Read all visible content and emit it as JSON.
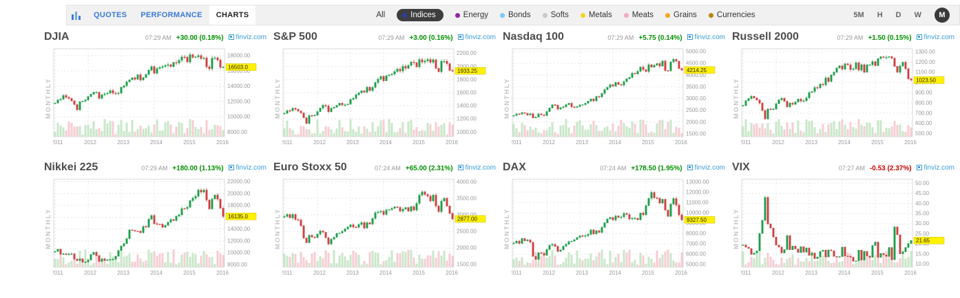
{
  "topbar": {
    "tabs": [
      {
        "label": "QUOTES",
        "active": false
      },
      {
        "label": "PERFORMANCE",
        "active": false
      },
      {
        "label": "CHARTS",
        "active": true
      }
    ],
    "filters": [
      {
        "label": "All",
        "dot": null,
        "selected": false
      },
      {
        "label": "Indices",
        "dot": "#2c3e9e",
        "selected": true
      },
      {
        "label": "Energy",
        "dot": "#8e24aa",
        "selected": false
      },
      {
        "label": "Bonds",
        "dot": "#7ec8f7",
        "selected": false
      },
      {
        "label": "Softs",
        "dot": "#c9c9c9",
        "selected": false
      },
      {
        "label": "Metals",
        "dot": "#f5d327",
        "selected": false
      },
      {
        "label": "Meats",
        "dot": "#f2aac4",
        "selected": false
      },
      {
        "label": "Grains",
        "dot": "#f5a623",
        "selected": false
      },
      {
        "label": "Currencies",
        "dot": "#b8860b",
        "selected": false
      }
    ],
    "timeframes": [
      {
        "label": "5M",
        "active": false
      },
      {
        "label": "H",
        "active": false
      },
      {
        "label": "D",
        "active": false
      },
      {
        "label": "W",
        "active": false
      },
      {
        "label": "M",
        "active": true
      }
    ]
  },
  "branding": {
    "source_label": "finviz.com"
  },
  "colors": {
    "up": "#1d9e4a",
    "down": "#cf4040",
    "vol_up": "#c9e7c9",
    "vol_down": "#f5cdd3",
    "price_tag": "#fff100",
    "positive": "#009000",
    "negative": "#cc0000",
    "accent_blue": "#3a9bd5"
  },
  "chart_data": [
    {
      "type": "candlestick",
      "title": "DJIA",
      "time": "07:29 AM",
      "change": "+30.00 (0.18%)",
      "change_color": "#009000",
      "last_price_label": "16503.0",
      "period_label": "MONTHLY",
      "interval": "monthly",
      "x_start": "2011-01",
      "x_labels": [
        "2011",
        "2012",
        "2013",
        "2014",
        "2015",
        "2016"
      ],
      "y_ticks": [
        18000,
        16000,
        14000,
        12000,
        10000,
        8000
      ],
      "ylim": [
        7400,
        18900
      ],
      "closes": [
        11800,
        12200,
        12300,
        12800,
        12550,
        12400,
        12100,
        11600,
        10900,
        11950,
        12050,
        12200,
        12650,
        12950,
        13200,
        13200,
        12400,
        12880,
        13000,
        13100,
        13430,
        13100,
        13020,
        13100,
        13860,
        14050,
        14570,
        14840,
        15110,
        14900,
        15500,
        14810,
        15130,
        15540,
        16090,
        16570,
        15700,
        16320,
        16450,
        16580,
        16710,
        16820,
        16560,
        17100,
        17040,
        17390,
        17830,
        17820,
        17160,
        18130,
        17770,
        17840,
        18010,
        17620,
        17690,
        16530,
        16280,
        17660,
        17720,
        17420,
        16460,
        16503
      ]
    },
    {
      "type": "candlestick",
      "title": "S&P 500",
      "time": "07:29 AM",
      "change": "+3.00 (0.16%)",
      "change_color": "#009000",
      "last_price_label": "1933.25",
      "period_label": "MONTHLY",
      "interval": "monthly",
      "x_start": "2011-01",
      "x_labels": [
        "2011",
        "2012",
        "2013",
        "2014",
        "2015",
        "2016"
      ],
      "y_ticks": [
        2200,
        2000,
        1800,
        1600,
        1400,
        1200,
        1000
      ],
      "ylim": [
        930,
        2270
      ],
      "closes": [
        1286,
        1327,
        1325,
        1363,
        1345,
        1320,
        1292,
        1218,
        1131,
        1253,
        1246,
        1257,
        1312,
        1365,
        1408,
        1397,
        1310,
        1362,
        1379,
        1406,
        1440,
        1412,
        1416,
        1426,
        1498,
        1514,
        1569,
        1597,
        1630,
        1606,
        1685,
        1632,
        1681,
        1756,
        1805,
        1848,
        1782,
        1859,
        1872,
        1883,
        1923,
        1960,
        1930,
        2003,
        1972,
        2018,
        2067,
        2058,
        1994,
        2104,
        2067,
        2085,
        2107,
        2063,
        2103,
        1972,
        1920,
        2079,
        2080,
        2043,
        1940,
        1933.25
      ]
    },
    {
      "type": "candlestick",
      "title": "Nasdaq 100",
      "time": "07:29 AM",
      "change": "+5.75 (0.14%)",
      "change_color": "#009000",
      "last_price_label": "4214.25",
      "period_label": "MONTHLY",
      "interval": "monthly",
      "x_start": "2011-01",
      "x_labels": [
        "2011",
        "2012",
        "2013",
        "2014",
        "2015",
        "2016"
      ],
      "y_ticks": [
        5000,
        4500,
        4000,
        3500,
        3000,
        2500,
        2000,
        1500
      ],
      "ylim": [
        1380,
        5120
      ],
      "closes": [
        2277,
        2350,
        2338,
        2404,
        2370,
        2300,
        2355,
        2180,
        2215,
        2350,
        2310,
        2278,
        2445,
        2600,
        2738,
        2720,
        2550,
        2615,
        2650,
        2740,
        2800,
        2650,
        2620,
        2660,
        2730,
        2740,
        2800,
        2890,
        2980,
        2900,
        3090,
        3070,
        3220,
        3380,
        3480,
        3590,
        3530,
        3690,
        3600,
        3570,
        3720,
        3840,
        3900,
        4080,
        4050,
        4160,
        4340,
        4230,
        4150,
        4440,
        4340,
        4420,
        4490,
        4380,
        4600,
        4190,
        4180,
        4560,
        4670,
        4590,
        4280,
        4214.25
      ]
    },
    {
      "type": "candlestick",
      "title": "Russell 2000",
      "time": "07:29 AM",
      "change": "+1.50 (0.15%)",
      "change_color": "#009000",
      "last_price_label": "1023.50",
      "period_label": "MONTHLY",
      "interval": "monthly",
      "x_start": "2011-01",
      "x_labels": [
        "2011",
        "2012",
        "2013",
        "2014",
        "2015",
        "2016"
      ],
      "y_ticks": [
        1300,
        1200,
        1100,
        1000,
        900,
        800,
        700,
        600,
        500
      ],
      "ylim": [
        470,
        1330
      ],
      "closes": [
        775,
        822,
        843,
        865,
        848,
        827,
        797,
        726,
        644,
        741,
        737,
        740,
        792,
        830,
        846,
        816,
        762,
        798,
        786,
        809,
        837,
        818,
        821,
        849,
        902,
        911,
        951,
        947,
        984,
        977,
        1045,
        1010,
        1073,
        1100,
        1142,
        1163,
        1130,
        1183,
        1173,
        1126,
        1134,
        1193,
        1120,
        1174,
        1101,
        1173,
        1173,
        1204,
        1165,
        1233,
        1252,
        1246,
        1246,
        1253,
        1238,
        1158,
        1100,
        1161,
        1198,
        1135,
        1035,
        1023.5
      ]
    },
    {
      "type": "candlestick",
      "title": "Nikkei 225",
      "time": "07:29 AM",
      "change": "+180.00 (1.13%)",
      "change_color": "#009000",
      "last_price_label": "16135.0",
      "period_label": "MONTHLY",
      "interval": "monthly",
      "x_start": "2011-01",
      "x_labels": [
        "2011",
        "2012",
        "2013",
        "2014",
        "2015",
        "2016"
      ],
      "y_ticks": [
        22000,
        20000,
        18000,
        16000,
        14000,
        12000,
        10000,
        8000
      ],
      "ylim": [
        7600,
        22400
      ],
      "closes": [
        10237,
        10624,
        9755,
        9849,
        9693,
        9816,
        9833,
        8955,
        8700,
        8988,
        8434,
        8455,
        8802,
        9723,
        10083,
        9520,
        8542,
        9006,
        8695,
        8839,
        8870,
        8928,
        9446,
        10395,
        11138,
        11559,
        12397,
        13860,
        13774,
        13677,
        13668,
        13388,
        14455,
        14327,
        15661,
        16291,
        14914,
        14841,
        14827,
        14304,
        14632,
        15162,
        15620,
        15424,
        16173,
        16413,
        17459,
        17450,
        17674,
        18797,
        19206,
        19520,
        20563,
        20235,
        20585,
        18890,
        17388,
        19083,
        19747,
        19033,
        17518,
        16135
      ]
    },
    {
      "type": "candlestick",
      "title": "Euro Stoxx 50",
      "time": "07:24 AM",
      "change": "+65.00 (2.31%)",
      "change_color": "#009000",
      "last_price_label": "2877.00",
      "period_label": "MONTHLY",
      "interval": "monthly",
      "x_start": "2011-01",
      "x_labels": [
        "2011",
        "2012",
        "2013",
        "2014",
        "2015",
        "2016"
      ],
      "y_ticks": [
        4000,
        3500,
        3000,
        2500,
        2000,
        1500
      ],
      "ylim": [
        1420,
        4080
      ],
      "closes": [
        2953,
        3013,
        2910,
        3011,
        2861,
        2848,
        2670,
        2302,
        2159,
        2385,
        2330,
        2316,
        2416,
        2512,
        2477,
        2306,
        2118,
        2264,
        2325,
        2440,
        2454,
        2503,
        2575,
        2635,
        2702,
        2633,
        2624,
        2711,
        2769,
        2602,
        2768,
        2721,
        2893,
        3067,
        3086,
        3109,
        3013,
        3149,
        3161,
        3198,
        3244,
        3228,
        3115,
        3172,
        3225,
        3113,
        3250,
        3146,
        3351,
        3599,
        3697,
        3615,
        3570,
        3424,
        3600,
        3269,
        3100,
        3418,
        3506,
        3267,
        3045,
        2877
      ]
    },
    {
      "type": "candlestick",
      "title": "DAX",
      "time": "07:24 AM",
      "change": "+178.50 (1.95%)",
      "change_color": "#009000",
      "last_price_label": "9327.50",
      "period_label": "MONTHLY",
      "interval": "monthly",
      "x_start": "2011-01",
      "x_labels": [
        "2011",
        "2012",
        "2013",
        "2014",
        "2015",
        "2016"
      ],
      "y_ticks": [
        13000,
        12000,
        11000,
        10000,
        9000,
        8000,
        7000,
        6000,
        5000
      ],
      "ylim": [
        4750,
        13250
      ],
      "closes": [
        7077,
        7272,
        7041,
        7514,
        7293,
        7376,
        7159,
        5785,
        5502,
        6141,
        6088,
        5898,
        6458,
        6856,
        6946,
        6761,
        6264,
        6416,
        6772,
        6971,
        7216,
        7260,
        7405,
        7612,
        7776,
        7741,
        7795,
        7913,
        8348,
        7959,
        8275,
        8103,
        8594,
        9033,
        9405,
        9552,
        9306,
        9692,
        9555,
        9603,
        9943,
        9833,
        9407,
        9470,
        9474,
        9326,
        9980,
        9805,
        10694,
        11401,
        11966,
        11454,
        11413,
        10944,
        11308,
        10259,
        9660,
        10850,
        11382,
        10743,
        9798,
        9327.5
      ]
    },
    {
      "type": "candlestick",
      "title": "VIX",
      "time": "07:27 AM",
      "change": "-0.53 (2.37%)",
      "change_color": "#cc0000",
      "last_price_label": "21.65",
      "period_label": "MONTHLY",
      "interval": "monthly",
      "x_start": "2011-01",
      "x_labels": [
        "2011",
        "2012",
        "2013",
        "2014",
        "2015",
        "2016"
      ],
      "y_ticks": [
        50,
        45,
        40,
        35,
        30,
        25,
        20,
        15,
        10
      ],
      "ylim": [
        8.5,
        52
      ],
      "closes": [
        19.5,
        18.4,
        17.7,
        14.8,
        15.5,
        16.5,
        25.2,
        31.6,
        43.0,
        29.9,
        27.8,
        23.4,
        19.4,
        18.4,
        15.5,
        17.2,
        24.1,
        17.1,
        18.9,
        17.5,
        15.7,
        18.6,
        15.9,
        18.0,
        14.3,
        15.5,
        12.7,
        13.5,
        16.3,
        16.9,
        13.5,
        17.0,
        16.6,
        13.8,
        13.7,
        13.7,
        18.4,
        14.0,
        13.9,
        13.4,
        11.4,
        11.6,
        16.9,
        12.0,
        16.3,
        14.0,
        13.3,
        19.2,
        20.9,
        13.3,
        15.3,
        14.6,
        13.8,
        18.2,
        12.1,
        28.4,
        24.5,
        15.1,
        16.1,
        18.2,
        20.2,
        21.65
      ]
    }
  ]
}
